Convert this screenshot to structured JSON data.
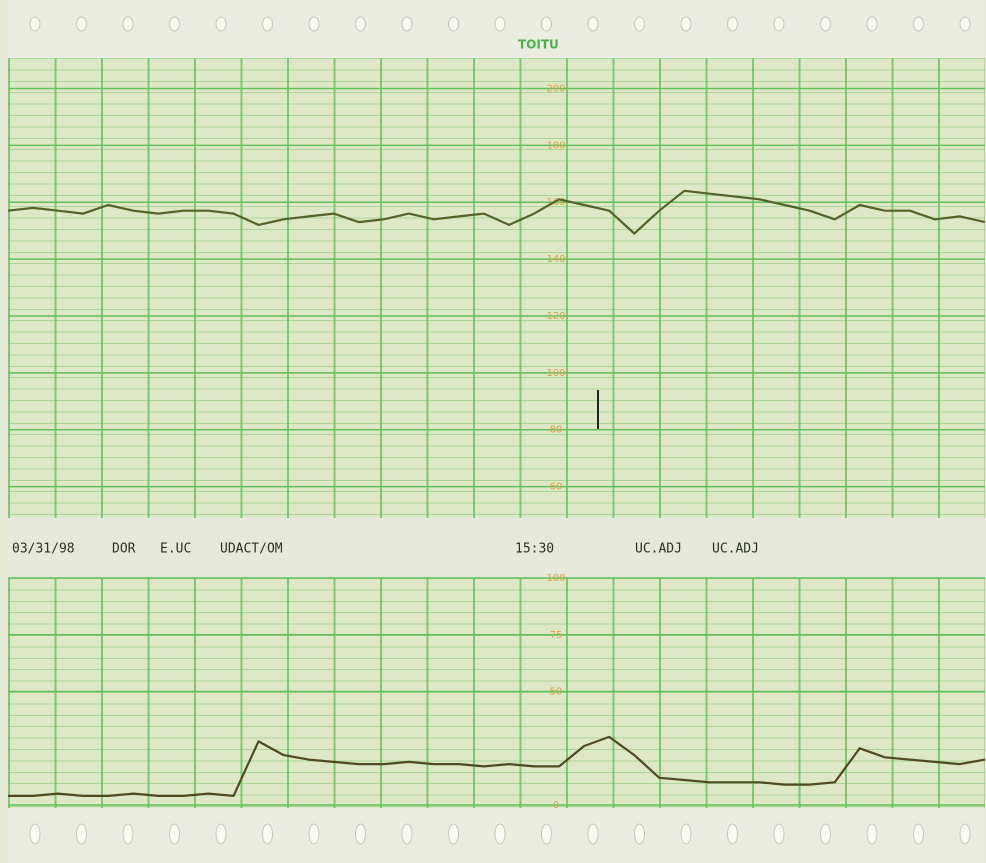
{
  "chart_data": [
    {
      "type": "line",
      "color": "#55622a",
      "ylim": [
        50,
        210
      ],
      "yticks": [
        60,
        80,
        100,
        120,
        140,
        160,
        180,
        200
      ],
      "grid": true,
      "values": [
        157,
        158,
        157,
        156,
        159,
        157,
        156,
        157,
        157,
        156,
        152,
        154,
        155,
        156,
        153,
        154,
        156,
        154,
        155,
        156,
        152,
        156,
        161,
        159,
        157,
        149,
        157,
        164,
        163,
        162,
        161,
        159,
        157,
        154,
        159,
        157,
        157,
        154,
        155,
        153
      ]
    },
    {
      "type": "line",
      "color": "#4f4a22",
      "ylim": [
        0,
        100
      ],
      "yticks": [
        0,
        50,
        75,
        100
      ],
      "grid": true,
      "values": [
        4,
        4,
        5,
        4,
        4,
        5,
        4,
        4,
        5,
        4,
        28,
        22,
        20,
        19,
        18,
        18,
        19,
        18,
        18,
        17,
        18,
        17,
        17,
        26,
        30,
        22,
        12,
        11,
        10,
        10,
        10,
        9,
        9,
        10,
        25,
        21,
        20,
        19,
        18,
        20
      ]
    }
  ],
  "printout": {
    "brand": "TOITU",
    "strip": [
      "03/31/98",
      "DOR",
      "E.UC",
      "UDACT/OM",
      "15:30",
      "UC.ADJ",
      "UC.ADJ"
    ]
  }
}
